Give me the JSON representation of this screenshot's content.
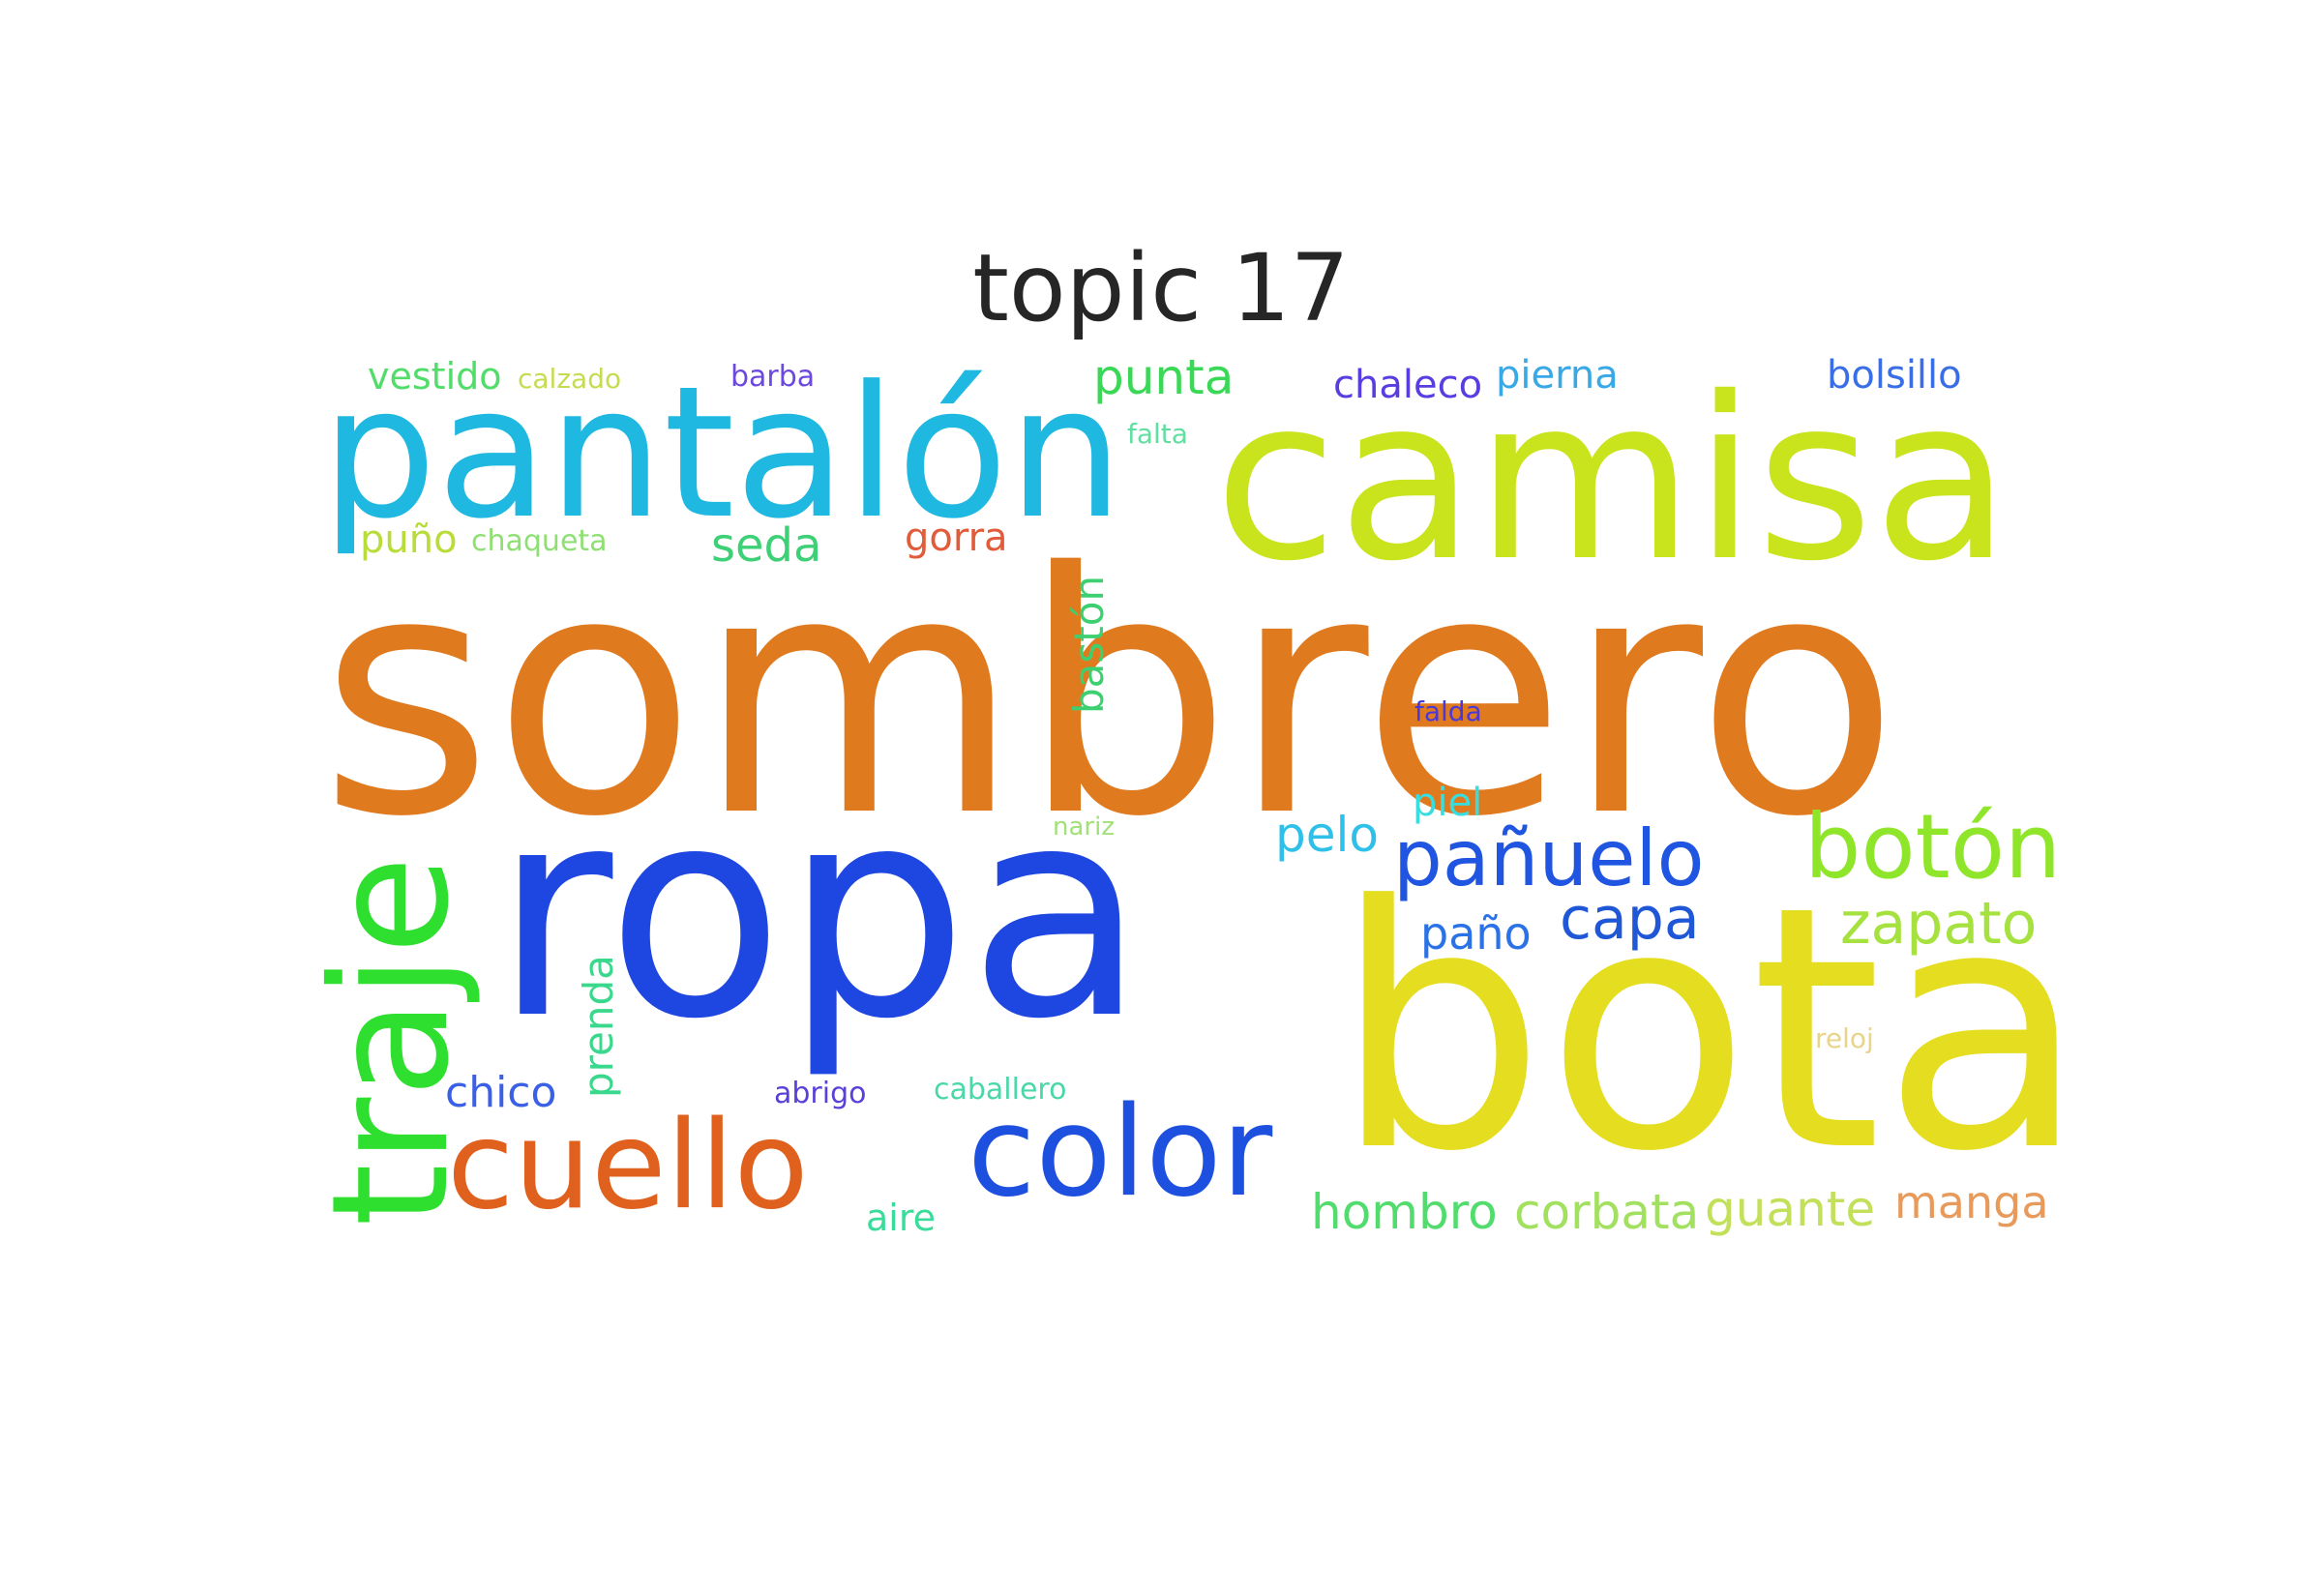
{
  "title": "topic 17",
  "words": [
    {
      "text": "sombrero",
      "color": "#e07a1f"
    },
    {
      "text": "ropa",
      "color": "#1e46e0"
    },
    {
      "text": "bota",
      "color": "#e5dd1f"
    },
    {
      "text": "camisa",
      "color": "#c9e31c"
    },
    {
      "text": "pantalón",
      "color": "#1fb8e0"
    },
    {
      "text": "traje",
      "color": "#2fdf2f"
    },
    {
      "text": "cuello",
      "color": "#e0601e"
    },
    {
      "text": "color",
      "color": "#1e50e0"
    },
    {
      "text": "botón",
      "color": "#8fe52a"
    },
    {
      "text": "pañuelo",
      "color": "#1f55e0"
    },
    {
      "text": "zapato",
      "color": "#a5e23f"
    },
    {
      "text": "capa",
      "color": "#1f57d6"
    },
    {
      "text": "paño",
      "color": "#2a72e6"
    },
    {
      "text": "pelo",
      "color": "#2ec0e8"
    },
    {
      "text": "piel",
      "color": "#38dde0"
    },
    {
      "text": "punta",
      "color": "#3ad856"
    },
    {
      "text": "seda",
      "color": "#3dd076"
    },
    {
      "text": "gorra",
      "color": "#e05c3a"
    },
    {
      "text": "vestido",
      "color": "#52dc6a"
    },
    {
      "text": "calzado",
      "color": "#c5dc50"
    },
    {
      "text": "barba",
      "color": "#6d48e0"
    },
    {
      "text": "chaleco",
      "color": "#5a3de0"
    },
    {
      "text": "pierna",
      "color": "#38a8e6"
    },
    {
      "text": "bolsillo",
      "color": "#3a6ee6"
    },
    {
      "text": "falta",
      "color": "#60e0a0"
    },
    {
      "text": "puño",
      "color": "#b8dc3a"
    },
    {
      "text": "chaqueta",
      "color": "#8ee072"
    },
    {
      "text": "bastón",
      "color": "#3dd070"
    },
    {
      "text": "falda",
      "color": "#4b38d8"
    },
    {
      "text": "nariz",
      "color": "#a2e07a"
    },
    {
      "text": "prenda",
      "color": "#3ad88c"
    },
    {
      "text": "chico",
      "color": "#3a60e6"
    },
    {
      "text": "abrigo",
      "color": "#5a40d8"
    },
    {
      "text": "caballero",
      "color": "#4ad8a8"
    },
    {
      "text": "aire",
      "color": "#3adc9c"
    },
    {
      "text": "hombro",
      "color": "#52dc6e"
    },
    {
      "text": "corbata",
      "color": "#a2e060"
    },
    {
      "text": "guante",
      "color": "#c2e05a"
    },
    {
      "text": "manga",
      "color": "#e89a5a"
    },
    {
      "text": "reloj",
      "color": "#e8d48a"
    }
  ]
}
